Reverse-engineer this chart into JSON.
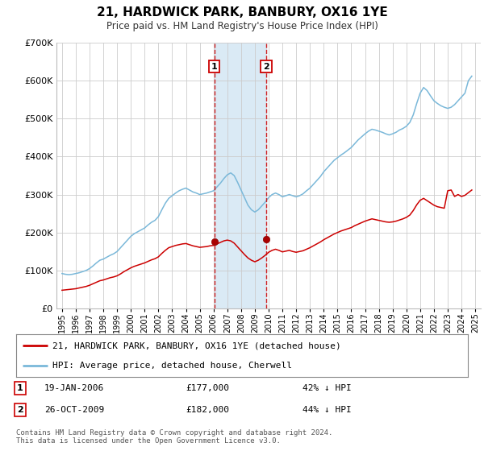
{
  "title": "21, HARDWICK PARK, BANBURY, OX16 1YE",
  "subtitle": "Price paid vs. HM Land Registry's House Price Index (HPI)",
  "hpi_color": "#7ab8d9",
  "price_color": "#cc0000",
  "shade_color": "#daeaf5",
  "background_color": "#ffffff",
  "grid_color": "#cccccc",
  "ylim": [
    0,
    700000
  ],
  "yticks": [
    0,
    100000,
    200000,
    300000,
    400000,
    500000,
    600000,
    700000
  ],
  "transaction1": {
    "date_x": 2006.052,
    "price": 177000,
    "label": "1",
    "pct": "42%",
    "direction": "↓",
    "display_date": "19-JAN-2006"
  },
  "transaction2": {
    "date_x": 2009.818,
    "price": 182000,
    "label": "2",
    "pct": "44%",
    "direction": "↓",
    "display_date": "26-OCT-2009"
  },
  "legend_line1": "21, HARDWICK PARK, BANBURY, OX16 1YE (detached house)",
  "legend_line2": "HPI: Average price, detached house, Cherwell",
  "footnote": "Contains HM Land Registry data © Crown copyright and database right 2024.\nThis data is licensed under the Open Government Licence v3.0.",
  "xlim_left": 1994.6,
  "xlim_right": 2025.4,
  "hpi_data_x": [
    1995.0,
    1995.25,
    1995.5,
    1995.75,
    1996.0,
    1996.25,
    1996.5,
    1996.75,
    1997.0,
    1997.25,
    1997.5,
    1997.75,
    1998.0,
    1998.25,
    1998.5,
    1998.75,
    1999.0,
    1999.25,
    1999.5,
    1999.75,
    2000.0,
    2000.25,
    2000.5,
    2000.75,
    2001.0,
    2001.25,
    2001.5,
    2001.75,
    2002.0,
    2002.25,
    2002.5,
    2002.75,
    2003.0,
    2003.25,
    2003.5,
    2003.75,
    2004.0,
    2004.25,
    2004.5,
    2004.75,
    2005.0,
    2005.25,
    2005.5,
    2005.75,
    2006.0,
    2006.25,
    2006.5,
    2006.75,
    2007.0,
    2007.25,
    2007.5,
    2007.75,
    2008.0,
    2008.25,
    2008.5,
    2008.75,
    2009.0,
    2009.25,
    2009.5,
    2009.75,
    2010.0,
    2010.25,
    2010.5,
    2010.75,
    2011.0,
    2011.25,
    2011.5,
    2011.75,
    2012.0,
    2012.25,
    2012.5,
    2012.75,
    2013.0,
    2013.25,
    2013.5,
    2013.75,
    2014.0,
    2014.25,
    2014.5,
    2014.75,
    2015.0,
    2015.25,
    2015.5,
    2015.75,
    2016.0,
    2016.25,
    2016.5,
    2016.75,
    2017.0,
    2017.25,
    2017.5,
    2017.75,
    2018.0,
    2018.25,
    2018.5,
    2018.75,
    2019.0,
    2019.25,
    2019.5,
    2019.75,
    2020.0,
    2020.25,
    2020.5,
    2020.75,
    2021.0,
    2021.25,
    2021.5,
    2021.75,
    2022.0,
    2022.25,
    2022.5,
    2022.75,
    2023.0,
    2023.25,
    2023.5,
    2023.75,
    2024.0,
    2024.25,
    2024.5,
    2024.75
  ],
  "hpi_data_y": [
    92000,
    90000,
    89000,
    90000,
    92000,
    94000,
    97000,
    100000,
    105000,
    112000,
    120000,
    127000,
    130000,
    135000,
    140000,
    144000,
    150000,
    160000,
    170000,
    180000,
    190000,
    197000,
    202000,
    207000,
    212000,
    220000,
    227000,
    232000,
    242000,
    260000,
    277000,
    290000,
    297000,
    304000,
    310000,
    314000,
    317000,
    312000,
    307000,
    304000,
    300000,
    302000,
    304000,
    307000,
    310000,
    320000,
    330000,
    342000,
    352000,
    357000,
    350000,
    332000,
    312000,
    292000,
    272000,
    260000,
    254000,
    260000,
    270000,
    280000,
    292000,
    300000,
    304000,
    300000,
    294000,
    297000,
    300000,
    297000,
    294000,
    297000,
    302000,
    310000,
    317000,
    327000,
    337000,
    347000,
    360000,
    370000,
    380000,
    390000,
    397000,
    404000,
    410000,
    417000,
    424000,
    434000,
    444000,
    452000,
    460000,
    467000,
    472000,
    470000,
    467000,
    464000,
    460000,
    457000,
    460000,
    464000,
    470000,
    474000,
    480000,
    490000,
    510000,
    540000,
    567000,
    582000,
    574000,
    560000,
    547000,
    540000,
    534000,
    530000,
    527000,
    530000,
    537000,
    547000,
    557000,
    567000,
    600000,
    612000
  ],
  "price_data_x": [
    1995.0,
    1995.25,
    1995.5,
    1995.75,
    1996.0,
    1996.25,
    1996.5,
    1996.75,
    1997.0,
    1997.25,
    1997.5,
    1997.75,
    1998.0,
    1998.25,
    1998.5,
    1998.75,
    1999.0,
    1999.25,
    1999.5,
    1999.75,
    2000.0,
    2000.25,
    2000.5,
    2000.75,
    2001.0,
    2001.25,
    2001.5,
    2001.75,
    2002.0,
    2002.25,
    2002.5,
    2002.75,
    2003.0,
    2003.25,
    2003.5,
    2003.75,
    2004.0,
    2004.25,
    2004.5,
    2004.75,
    2005.0,
    2005.25,
    2005.5,
    2005.75,
    2006.0,
    2006.25,
    2006.5,
    2006.75,
    2007.0,
    2007.25,
    2007.5,
    2007.75,
    2008.0,
    2008.25,
    2008.5,
    2008.75,
    2009.0,
    2009.25,
    2009.5,
    2009.75,
    2010.0,
    2010.25,
    2010.5,
    2010.75,
    2011.0,
    2011.25,
    2011.5,
    2011.75,
    2012.0,
    2012.25,
    2012.5,
    2012.75,
    2013.0,
    2013.25,
    2013.5,
    2013.75,
    2014.0,
    2014.25,
    2014.5,
    2014.75,
    2015.0,
    2015.25,
    2015.5,
    2015.75,
    2016.0,
    2016.25,
    2016.5,
    2016.75,
    2017.0,
    2017.25,
    2017.5,
    2017.75,
    2018.0,
    2018.25,
    2018.5,
    2018.75,
    2019.0,
    2019.25,
    2019.5,
    2019.75,
    2020.0,
    2020.25,
    2020.5,
    2020.75,
    2021.0,
    2021.25,
    2021.5,
    2021.75,
    2022.0,
    2022.25,
    2022.5,
    2022.75,
    2023.0,
    2023.25,
    2023.5,
    2023.75,
    2024.0,
    2024.25,
    2024.5,
    2024.75
  ],
  "price_data_y": [
    48000,
    49000,
    50000,
    51000,
    52000,
    54000,
    56000,
    58000,
    61000,
    65000,
    69000,
    73000,
    75000,
    78000,
    81000,
    83000,
    86000,
    91000,
    97000,
    102000,
    107000,
    111000,
    114000,
    117000,
    120000,
    124000,
    128000,
    131000,
    136000,
    145000,
    153000,
    160000,
    163000,
    166000,
    168000,
    170000,
    171000,
    168000,
    165000,
    163000,
    161000,
    162000,
    163000,
    165000,
    166000,
    170000,
    174000,
    178000,
    180000,
    178000,
    172000,
    162000,
    152000,
    142000,
    133000,
    127000,
    123000,
    127000,
    133000,
    140000,
    148000,
    153000,
    156000,
    153000,
    149000,
    151000,
    153000,
    150000,
    148000,
    150000,
    152000,
    156000,
    160000,
    165000,
    170000,
    175000,
    181000,
    186000,
    191000,
    196000,
    200000,
    204000,
    207000,
    210000,
    213000,
    218000,
    222000,
    226000,
    230000,
    233000,
    236000,
    234000,
    232000,
    230000,
    228000,
    227000,
    228000,
    230000,
    233000,
    236000,
    240000,
    246000,
    258000,
    273000,
    285000,
    290000,
    284000,
    278000,
    272000,
    268000,
    266000,
    264000,
    310000,
    312000,
    295000,
    300000,
    295000,
    298000,
    305000,
    312000
  ]
}
